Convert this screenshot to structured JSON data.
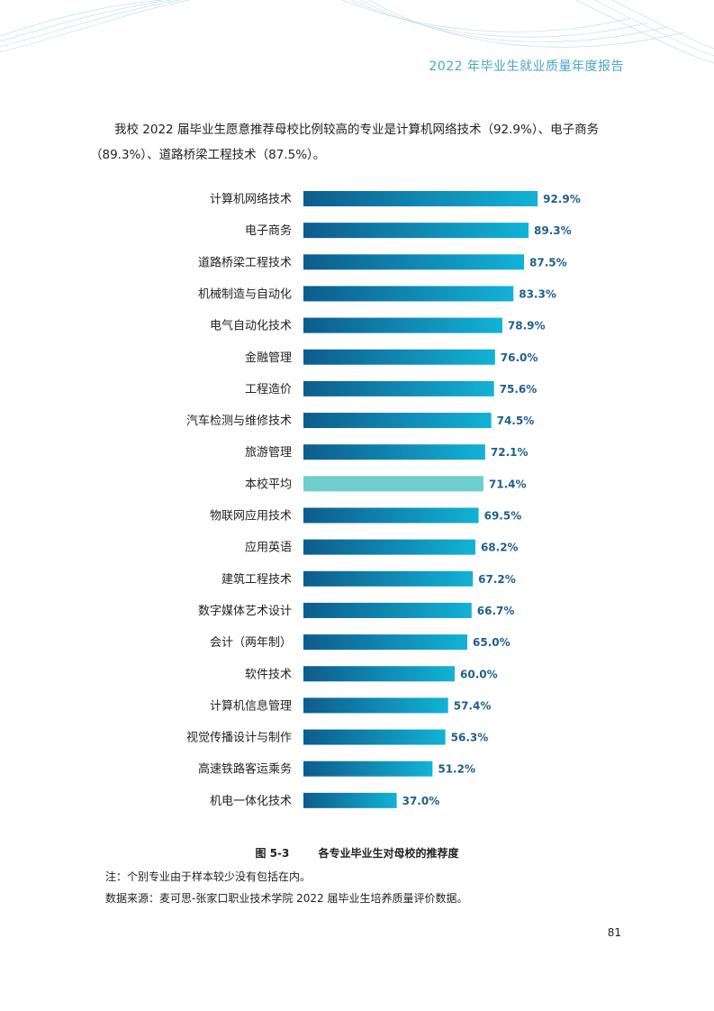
{
  "header": {
    "report_title": "2022 年毕业生就业质量年度报告"
  },
  "intro_text": "我校 2022 届毕业生愿意推荐母校比例较高的专业是计算机网络技术（92.9%）、电子商务（89.3%）、道路桥梁工程技术（87.5%）。",
  "colors": {
    "bar_dark": "#0d5c8c",
    "bar_light": "#12b2d6",
    "highlight": "#6ecfcc",
    "value_label": "#1f5f8b",
    "header_text": "#4aa6c6"
  },
  "chart_data": {
    "type": "bar",
    "orientation": "horizontal",
    "categories": [
      "计算机网络技术",
      "电子商务",
      "道路桥梁工程技术",
      "机械制造与自动化",
      "电气自动化技术",
      "金融管理",
      "工程造价",
      "汽车检测与维修技术",
      "旅游管理",
      "本校平均",
      "物联网应用技术",
      "应用英语",
      "建筑工程技术",
      "数字媒体艺术设计",
      "会计（两年制）",
      "软件技术",
      "计算机信息管理",
      "视觉传播设计与制作",
      "高速铁路客运乘务",
      "机电一体化技术"
    ],
    "values": [
      92.9,
      89.3,
      87.5,
      83.3,
      78.9,
      76.0,
      75.6,
      74.5,
      72.1,
      71.4,
      69.5,
      68.2,
      67.2,
      66.7,
      65.0,
      60.0,
      57.4,
      56.3,
      51.2,
      37.0
    ],
    "value_labels": [
      "92.9%",
      "89.3%",
      "87.5%",
      "83.3%",
      "78.9%",
      "76.0%",
      "75.6%",
      "74.5%",
      "72.1%",
      "71.4%",
      "69.5%",
      "68.2%",
      "67.2%",
      "66.7%",
      "65.0%",
      "60.0%",
      "57.4%",
      "56.3%",
      "51.2%",
      "37.0%"
    ],
    "highlight_category": "本校平均",
    "xlim": [
      0,
      100
    ],
    "grid": false,
    "legend": "none"
  },
  "figure": {
    "number": "图 5-3",
    "title": "各专业毕业生对母校的推荐度"
  },
  "notes": {
    "note": "注：个别专业由于样本较少没有包括在内。",
    "source": "数据来源：麦可思-张家口职业技术学院 2022 届毕业生培养质量评价数据。"
  },
  "page_number": "81"
}
